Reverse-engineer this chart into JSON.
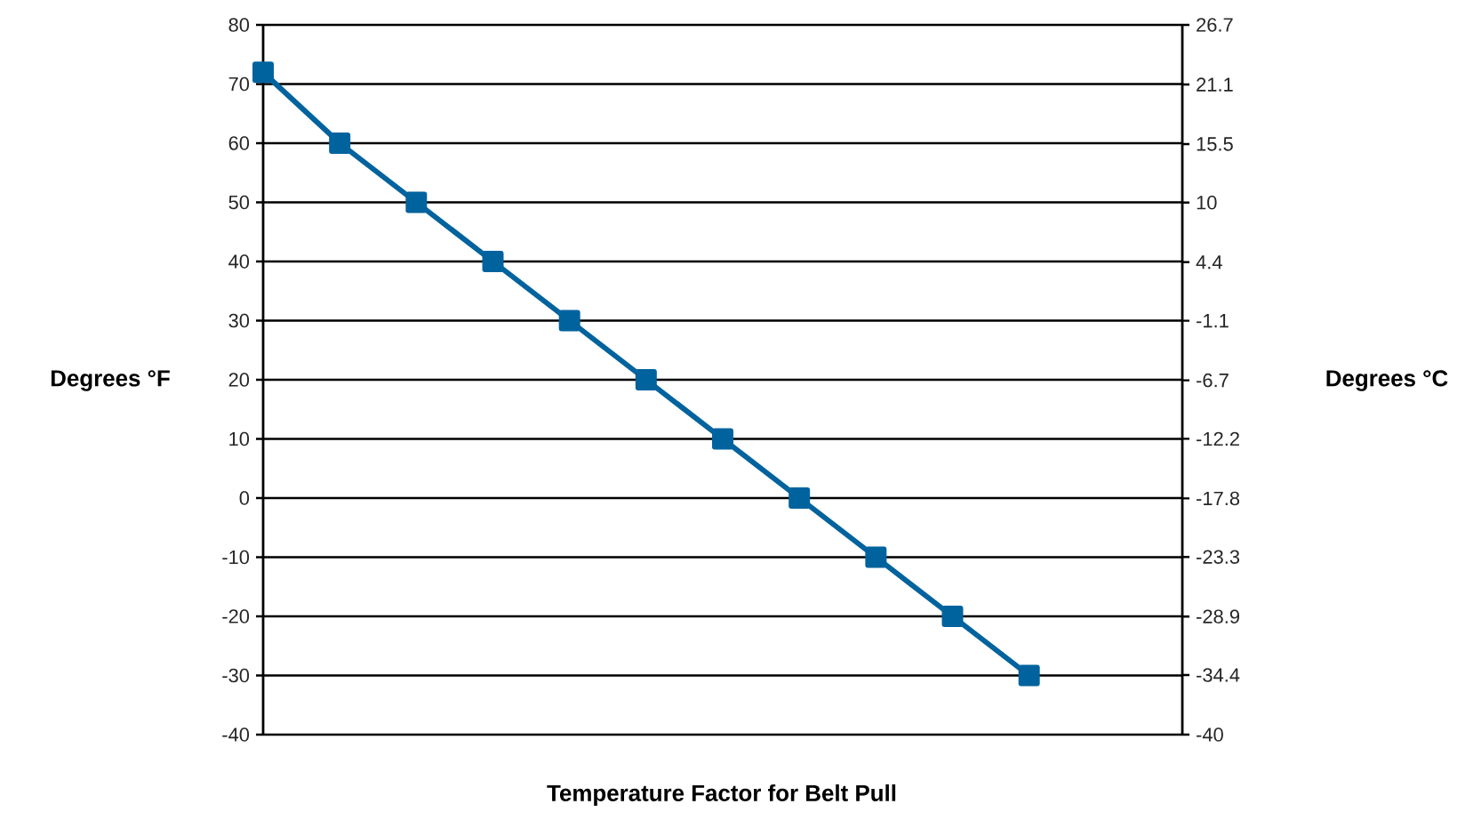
{
  "chart_data": {
    "type": "line",
    "xlabel": "Temperature Factor for Belt Pull",
    "ylabel": "Degrees °F",
    "y2label": "Degrees °C",
    "categories": [
      null,
      null,
      null,
      null,
      null,
      null,
      null,
      null,
      null,
      null,
      null
    ],
    "series": [
      {
        "color": "#00639e",
        "values": [
          72,
          60,
          50,
          40,
          30,
          20,
          10,
          0,
          -10,
          -20,
          -30
        ]
      }
    ],
    "ylim": [
      -40,
      80
    ],
    "yticks": [
      -40,
      -30,
      -20,
      -10,
      0,
      10,
      20,
      30,
      40,
      50,
      60,
      70,
      80
    ],
    "y2lim": [
      -40,
      26.7
    ],
    "y2ticks": [
      -40,
      -34.4,
      -28.9,
      -23.3,
      -17.8,
      -12.2,
      -6.7,
      -1.1,
      4.4,
      10,
      15.5,
      21.1,
      26.7
    ],
    "grid": "y",
    "marker": "square",
    "line_style": "solid",
    "tick_labels": "y"
  }
}
